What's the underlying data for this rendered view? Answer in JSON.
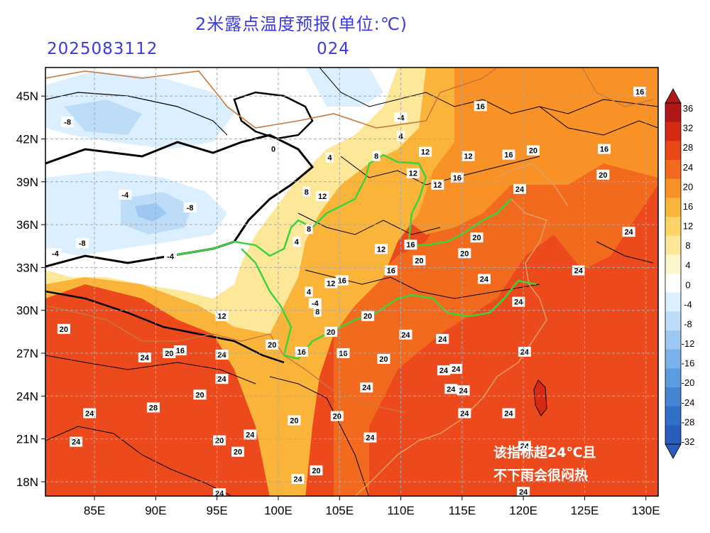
{
  "title": "2米露点温度预报(单位:℃)",
  "init_time": "2025083112",
  "lead_time": "024",
  "map": {
    "lon_range": [
      81,
      131
    ],
    "lat_range": [
      17,
      47
    ],
    "lon_ticks": [
      "85E",
      "90E",
      "95E",
      "100E",
      "105E",
      "110E",
      "115E",
      "120E",
      "125E",
      "130E"
    ],
    "lat_ticks": [
      "45N",
      "42N",
      "39N",
      "36N",
      "33N",
      "30N",
      "27N",
      "24N",
      "21N",
      "18N"
    ],
    "grid": true
  },
  "note": [
    "该指标超24℃且",
    "不下雨会很闷热"
  ],
  "colorbar": {
    "labels": [
      "36",
      "32",
      "28",
      "24",
      "20",
      "16",
      "12",
      "8",
      "4",
      "0",
      "-4",
      "-8",
      "-12",
      "-16",
      "-20",
      "-24",
      "-28",
      "-32"
    ],
    "colors": [
      "#b01818",
      "#d42a14",
      "#e84818",
      "#f26a1e",
      "#f89226",
      "#fbb43a",
      "#fcd466",
      "#fde89a",
      "#fff7cc",
      "#ffffff",
      "#dcefff",
      "#bcdcf8",
      "#9cc8f2",
      "#7cb2ea",
      "#5c9ce0",
      "#4486d4",
      "#3270c8",
      "#2a5cbc"
    ]
  },
  "contour_labels": [
    {
      "t": "-4",
      "lon": 110,
      "lat": 43.5
    },
    {
      "t": "-8",
      "lon": 82.8,
      "lat": 43.2
    },
    {
      "t": "-8",
      "lon": 92.8,
      "lat": 37.2
    },
    {
      "t": "-8",
      "lon": 84,
      "lat": 34.7
    },
    {
      "t": "-4",
      "lon": 81.8,
      "lat": 34
    },
    {
      "t": "-4",
      "lon": 87.5,
      "lat": 38.1
    },
    {
      "t": "-4",
      "lon": 91.2,
      "lat": 33.8
    },
    {
      "t": "-4",
      "lon": 103,
      "lat": 30.5
    },
    {
      "t": "0",
      "lon": 99.6,
      "lat": 41.3
    },
    {
      "t": "4",
      "lon": 110,
      "lat": 42.2
    },
    {
      "t": "4",
      "lon": 104.2,
      "lat": 40.7
    },
    {
      "t": "4",
      "lon": 101.5,
      "lat": 34.8
    },
    {
      "t": "4",
      "lon": 102.5,
      "lat": 31.3
    },
    {
      "t": "8",
      "lon": 108,
      "lat": 40.8
    },
    {
      "t": "8",
      "lon": 102.3,
      "lat": 38.3
    },
    {
      "t": "8",
      "lon": 102.5,
      "lat": 35.7
    },
    {
      "t": "8",
      "lon": 103.2,
      "lat": 29.9
    },
    {
      "t": "12",
      "lon": 112,
      "lat": 41.1
    },
    {
      "t": "12",
      "lon": 115.5,
      "lat": 40.8
    },
    {
      "t": "12",
      "lon": 111,
      "lat": 39.6
    },
    {
      "t": "12",
      "lon": 113,
      "lat": 38.8
    },
    {
      "t": "12",
      "lon": 103.6,
      "lat": 38
    },
    {
      "t": "12",
      "lon": 108.4,
      "lat": 34.3
    },
    {
      "t": "12",
      "lon": 104.3,
      "lat": 31.9
    },
    {
      "t": "12",
      "lon": 95.4,
      "lat": 29.6
    },
    {
      "t": "16",
      "lon": 116.5,
      "lat": 44.3
    },
    {
      "t": "16",
      "lon": 118.8,
      "lat": 40.9
    },
    {
      "t": "16",
      "lon": 126.6,
      "lat": 41.3
    },
    {
      "t": "16",
      "lon": 114.6,
      "lat": 39.3
    },
    {
      "t": "16",
      "lon": 110.8,
      "lat": 34.6
    },
    {
      "t": "16",
      "lon": 109.2,
      "lat": 32.8
    },
    {
      "t": "16",
      "lon": 105.2,
      "lat": 32.1
    },
    {
      "t": "16",
      "lon": 101.9,
      "lat": 27.1
    },
    {
      "t": "16",
      "lon": 105.3,
      "lat": 27
    },
    {
      "t": "16",
      "lon": 92,
      "lat": 27.2
    },
    {
      "t": "16",
      "lon": 129.5,
      "lat": 45.3
    },
    {
      "t": "20",
      "lon": 116.2,
      "lat": 35.1
    },
    {
      "t": "20",
      "lon": 115.2,
      "lat": 34
    },
    {
      "t": "20",
      "lon": 111.5,
      "lat": 33.5
    },
    {
      "t": "20",
      "lon": 107.3,
      "lat": 29.6
    },
    {
      "t": "20",
      "lon": 104.3,
      "lat": 28.5
    },
    {
      "t": "20",
      "lon": 108.6,
      "lat": 26.6
    },
    {
      "t": "20",
      "lon": 99.5,
      "lat": 27.6
    },
    {
      "t": "20",
      "lon": 101.3,
      "lat": 22.3
    },
    {
      "t": "20",
      "lon": 104.8,
      "lat": 22.6
    },
    {
      "t": "20",
      "lon": 96.7,
      "lat": 20.1
    },
    {
      "t": "20",
      "lon": 93.6,
      "lat": 24.1
    },
    {
      "t": "20",
      "lon": 91.1,
      "lat": 27
    },
    {
      "t": "20",
      "lon": 82.5,
      "lat": 28.7
    },
    {
      "t": "20",
      "lon": 95.2,
      "lat": 20.9
    },
    {
      "t": "20",
      "lon": 103.1,
      "lat": 18.8
    },
    {
      "t": "20",
      "lon": 120.8,
      "lat": 41.2
    },
    {
      "t": "20",
      "lon": 126.5,
      "lat": 39.5
    },
    {
      "t": "24",
      "lon": 119.7,
      "lat": 38.5
    },
    {
      "t": "24",
      "lon": 116.8,
      "lat": 32.2
    },
    {
      "t": "24",
      "lon": 119.6,
      "lat": 30.6
    },
    {
      "t": "24",
      "lon": 124.5,
      "lat": 32.8
    },
    {
      "t": "24",
      "lon": 128.6,
      "lat": 35.5
    },
    {
      "t": "24",
      "lon": 110.4,
      "lat": 28.3
    },
    {
      "t": "24",
      "lon": 113.4,
      "lat": 28
    },
    {
      "t": "24",
      "lon": 113.5,
      "lat": 25.8
    },
    {
      "t": "24",
      "lon": 114.5,
      "lat": 25.9
    },
    {
      "t": "24",
      "lon": 115.1,
      "lat": 24.4
    },
    {
      "t": "24",
      "lon": 114.1,
      "lat": 24.5
    },
    {
      "t": "24",
      "lon": 115.2,
      "lat": 22.8
    },
    {
      "t": "24",
      "lon": 118.8,
      "lat": 22.8
    },
    {
      "t": "24",
      "lon": 120.1,
      "lat": 27.1
    },
    {
      "t": "24",
      "lon": 120.1,
      "lat": 20.5
    },
    {
      "t": "24",
      "lon": 107.2,
      "lat": 24.6
    },
    {
      "t": "24",
      "lon": 107.5,
      "lat": 21.1
    },
    {
      "t": "24",
      "lon": 97.7,
      "lat": 21.3
    },
    {
      "t": "24",
      "lon": 95.4,
      "lat": 25.2
    },
    {
      "t": "24",
      "lon": 89.1,
      "lat": 26.7
    },
    {
      "t": "24",
      "lon": 95.4,
      "lat": 26.9
    },
    {
      "t": "24",
      "lon": 84.6,
      "lat": 22.8
    },
    {
      "t": "24",
      "lon": 83.5,
      "lat": 20.8
    },
    {
      "t": "24",
      "lon": 95.2,
      "lat": 17.2
    },
    {
      "t": "24",
      "lon": 120,
      "lat": 17.3
    },
    {
      "t": "24",
      "lon": 101.6,
      "lat": 18.2
    },
    {
      "t": "28",
      "lon": 89.8,
      "lat": 23.2
    }
  ]
}
